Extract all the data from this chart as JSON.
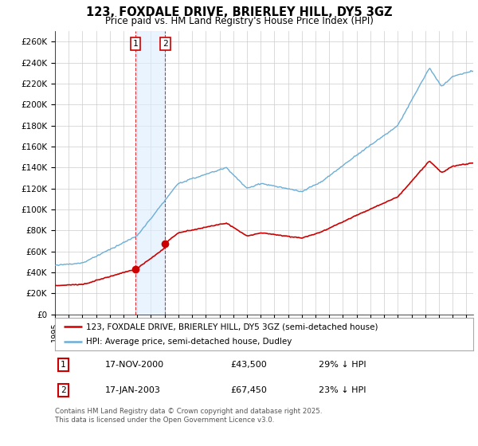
{
  "title": "123, FOXDALE DRIVE, BRIERLEY HILL, DY5 3GZ",
  "subtitle": "Price paid vs. HM Land Registry's House Price Index (HPI)",
  "legend_line1": "123, FOXDALE DRIVE, BRIERLEY HILL, DY5 3GZ (semi-detached house)",
  "legend_line2": "HPI: Average price, semi-detached house, Dudley",
  "transaction1_date": "17-NOV-2000",
  "transaction1_price": "£43,500",
  "transaction1_hpi": "29% ↓ HPI",
  "transaction1_year": 2000.88,
  "transaction1_value": 43500,
  "transaction2_date": "17-JAN-2003",
  "transaction2_price": "£67,450",
  "transaction2_hpi": "23% ↓ HPI",
  "transaction2_year": 2003.04,
  "transaction2_value": 67450,
  "hpi_color": "#6baed6",
  "price_color": "#cc0000",
  "background_color": "#ffffff",
  "grid_color": "#cccccc",
  "ylim": [
    0,
    270000
  ],
  "ytick_values": [
    0,
    20000,
    40000,
    60000,
    80000,
    100000,
    120000,
    140000,
    160000,
    180000,
    200000,
    220000,
    240000,
    260000
  ],
  "ytick_labels": [
    "£0",
    "£20K",
    "£40K",
    "£60K",
    "£80K",
    "£100K",
    "£120K",
    "£140K",
    "£160K",
    "£180K",
    "£200K",
    "£220K",
    "£240K",
    "£260K"
  ],
  "xlim_start": 1995,
  "xlim_end": 2025.5,
  "footer": "Contains HM Land Registry data © Crown copyright and database right 2025.\nThis data is licensed under the Open Government Licence v3.0."
}
